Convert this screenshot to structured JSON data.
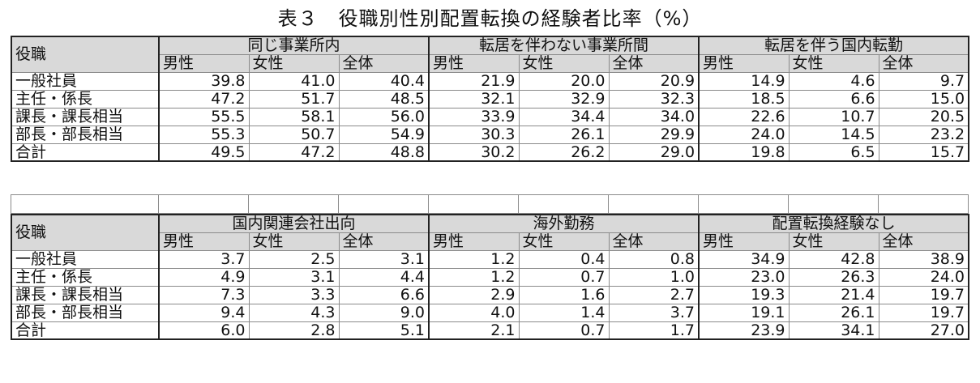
{
  "title": "表３　役職別性別配置転換の経験者比率（%）",
  "table1": {
    "corner": "役職",
    "groups": [
      "同じ事業所内",
      "転居を伴わない事業所間",
      "転居を伴う国内転勤"
    ],
    "sub_headers": [
      "男性",
      "女性",
      "全体"
    ],
    "rows": [
      {
        "label": "一般社員",
        "values": [
          "39.8",
          "41.0",
          "40.4",
          "21.9",
          "20.0",
          "20.9",
          "14.9",
          "4.6",
          "9.7"
        ]
      },
      {
        "label": "主任・係長",
        "values": [
          "47.2",
          "51.7",
          "48.5",
          "32.1",
          "32.9",
          "32.3",
          "18.5",
          "6.6",
          "15.0"
        ]
      },
      {
        "label": "課長・課長相当",
        "values": [
          "55.5",
          "58.1",
          "56.0",
          "33.9",
          "34.4",
          "34.0",
          "22.6",
          "10.7",
          "20.5"
        ]
      },
      {
        "label": "部長・部長相当",
        "values": [
          "55.3",
          "50.7",
          "54.9",
          "30.3",
          "26.1",
          "29.9",
          "24.0",
          "14.5",
          "23.2"
        ]
      }
    ],
    "total": {
      "label": "合計",
      "values": [
        "49.5",
        "47.2",
        "48.8",
        "30.2",
        "26.2",
        "29.0",
        "19.8",
        "6.5",
        "15.7"
      ]
    }
  },
  "table2": {
    "corner": "役職",
    "groups": [
      "国内関連会社出向",
      "海外勤務",
      "配置転換経験なし"
    ],
    "sub_headers": [
      "男性",
      "女性",
      "全体"
    ],
    "rows": [
      {
        "label": "一般社員",
        "values": [
          "3.7",
          "2.5",
          "3.1",
          "1.2",
          "0.4",
          "0.8",
          "34.9",
          "42.8",
          "38.9"
        ]
      },
      {
        "label": "主任・係長",
        "values": [
          "4.9",
          "3.1",
          "4.4",
          "1.2",
          "0.7",
          "1.0",
          "23.0",
          "26.3",
          "24.0"
        ]
      },
      {
        "label": "課長・課長相当",
        "values": [
          "7.3",
          "3.3",
          "6.6",
          "2.9",
          "1.6",
          "2.7",
          "19.3",
          "21.4",
          "19.7"
        ]
      },
      {
        "label": "部長・部長相当",
        "values": [
          "9.4",
          "4.3",
          "9.0",
          "4.0",
          "1.4",
          "3.7",
          "19.1",
          "26.1",
          "19.7"
        ]
      }
    ],
    "total": {
      "label": "合計",
      "values": [
        "6.0",
        "2.8",
        "5.1",
        "2.1",
        "0.7",
        "1.7",
        "23.9",
        "34.1",
        "27.0"
      ]
    }
  }
}
